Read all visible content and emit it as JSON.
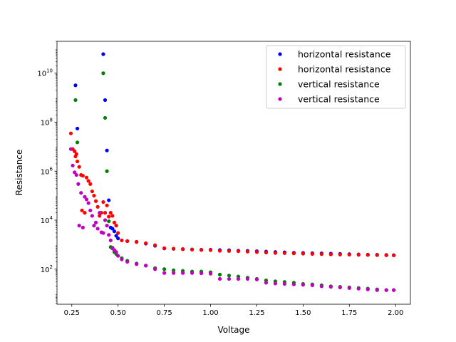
{
  "chart_data": {
    "type": "scatter",
    "xlabel": "Voltage",
    "ylabel": "Resistance",
    "xlim": [
      0.17,
      2.08
    ],
    "ylim": [
      3.7,
      200000000000.0
    ],
    "yscale": "log",
    "grid": false,
    "legend_placement": "top-right",
    "x_ticks": [
      {
        "value": 0.25,
        "label": "0.25"
      },
      {
        "value": 0.5,
        "label": "0.50"
      },
      {
        "value": 0.75,
        "label": "0.75"
      },
      {
        "value": 1.0,
        "label": "1.00"
      },
      {
        "value": 1.25,
        "label": "1.25"
      },
      {
        "value": 1.5,
        "label": "1.50"
      },
      {
        "value": 1.75,
        "label": "1.75"
      },
      {
        "value": 2.0,
        "label": "2.00"
      }
    ],
    "y_ticks": [
      {
        "value": 100,
        "base": "10",
        "exp": "2"
      },
      {
        "value": 10000,
        "base": "10",
        "exp": "4"
      },
      {
        "value": 1000000,
        "base": "10",
        "exp": "6"
      },
      {
        "value": 100000000,
        "base": "10",
        "exp": "8"
      },
      {
        "value": 10000000000,
        "base": "10",
        "exp": "10"
      }
    ],
    "series": [
      {
        "name": "horizontal resistance",
        "color": "#0000ff",
        "points": [
          [
            0.27,
            3200000000.0
          ],
          [
            0.28,
            55000000.0
          ],
          [
            0.42,
            60000000000.0
          ],
          [
            0.43,
            800000000.0
          ],
          [
            0.44,
            7000000.0
          ],
          [
            0.45,
            65000.0
          ],
          [
            0.46,
            5000
          ],
          [
            0.47,
            4500
          ],
          [
            0.48,
            3500
          ],
          [
            0.49,
            2300
          ],
          [
            0.5,
            1800
          ],
          [
            0.55,
            1400
          ],
          [
            0.6,
            1300
          ],
          [
            0.65,
            1100
          ],
          [
            0.7,
            900
          ],
          [
            0.75,
            700
          ],
          [
            0.8,
            680
          ],
          [
            0.85,
            660
          ],
          [
            0.9,
            640
          ],
          [
            0.95,
            620
          ],
          [
            1.0,
            620
          ],
          [
            1.05,
            600
          ],
          [
            1.1,
            590
          ],
          [
            1.15,
            570
          ],
          [
            1.2,
            560
          ],
          [
            1.25,
            540
          ],
          [
            1.3,
            520
          ],
          [
            1.35,
            500
          ],
          [
            1.4,
            490
          ],
          [
            1.45,
            470
          ],
          [
            1.5,
            460
          ],
          [
            1.55,
            450
          ],
          [
            1.6,
            440
          ],
          [
            1.65,
            430
          ],
          [
            1.7,
            420
          ],
          [
            1.75,
            410
          ],
          [
            1.8,
            400
          ],
          [
            1.85,
            390
          ],
          [
            1.9,
            385
          ],
          [
            1.95,
            380
          ],
          [
            1.99,
            375
          ]
        ]
      },
      {
        "name": "horizontal resistance",
        "color": "#ff0000",
        "points": [
          [
            0.245,
            35000000.0
          ],
          [
            0.255,
            8000000.0
          ],
          [
            0.265,
            6500000.0
          ],
          [
            0.27,
            4000000.0
          ],
          [
            0.275,
            5000000.0
          ],
          [
            0.28,
            2500000.0
          ],
          [
            0.29,
            1500000.0
          ],
          [
            0.3,
            700000.0
          ],
          [
            0.305,
            25000.0
          ],
          [
            0.31,
            650000.0
          ],
          [
            0.32,
            20000.0
          ],
          [
            0.33,
            550000.0
          ],
          [
            0.34,
            400000.0
          ],
          [
            0.35,
            300000.0
          ],
          [
            0.36,
            150000.0
          ],
          [
            0.37,
            100000.0
          ],
          [
            0.38,
            60000.0
          ],
          [
            0.39,
            35000.0
          ],
          [
            0.4,
            15000.0
          ],
          [
            0.41,
            20000.0
          ],
          [
            0.42,
            55000.0
          ],
          [
            0.43,
            20000.0
          ],
          [
            0.44,
            40000.0
          ],
          [
            0.45,
            14000.0
          ],
          [
            0.46,
            20000.0
          ],
          [
            0.47,
            15000.0
          ],
          [
            0.48,
            8000
          ],
          [
            0.49,
            6000
          ],
          [
            0.5,
            3000
          ],
          [
            0.52,
            1500
          ],
          [
            0.55,
            1400
          ],
          [
            0.6,
            1300
          ],
          [
            0.65,
            1150
          ],
          [
            0.7,
            950
          ],
          [
            0.75,
            720
          ],
          [
            0.8,
            680
          ],
          [
            0.85,
            650
          ],
          [
            0.9,
            630
          ],
          [
            0.95,
            610
          ],
          [
            1.0,
            600
          ],
          [
            1.05,
            560
          ],
          [
            1.1,
            550
          ],
          [
            1.15,
            540
          ],
          [
            1.2,
            520
          ],
          [
            1.25,
            500
          ],
          [
            1.3,
            480
          ],
          [
            1.35,
            460
          ],
          [
            1.4,
            450
          ],
          [
            1.45,
            440
          ],
          [
            1.5,
            430
          ],
          [
            1.55,
            420
          ],
          [
            1.6,
            410
          ],
          [
            1.65,
            400
          ],
          [
            1.7,
            395
          ],
          [
            1.75,
            390
          ],
          [
            1.8,
            385
          ],
          [
            1.85,
            380
          ],
          [
            1.9,
            375
          ],
          [
            1.95,
            370
          ],
          [
            1.99,
            365
          ]
        ]
      },
      {
        "name": "vertical resistance",
        "color": "#008000",
        "points": [
          [
            0.27,
            800000000.0
          ],
          [
            0.28,
            15000000.0
          ],
          [
            0.42,
            10000000000.0
          ],
          [
            0.43,
            150000000.0
          ],
          [
            0.44,
            1000000.0
          ],
          [
            0.45,
            9000
          ],
          [
            0.46,
            800
          ],
          [
            0.47,
            750
          ],
          [
            0.48,
            500
          ],
          [
            0.49,
            420
          ],
          [
            0.5,
            350
          ],
          [
            0.52,
            280
          ],
          [
            0.55,
            220
          ],
          [
            0.6,
            170
          ],
          [
            0.65,
            140
          ],
          [
            0.7,
            110
          ],
          [
            0.75,
            100
          ],
          [
            0.8,
            90
          ],
          [
            0.85,
            85
          ],
          [
            0.9,
            80
          ],
          [
            0.95,
            80
          ],
          [
            1.0,
            75
          ],
          [
            1.05,
            60
          ],
          [
            1.1,
            55
          ],
          [
            1.15,
            50
          ],
          [
            1.2,
            45
          ],
          [
            1.25,
            40
          ],
          [
            1.3,
            35
          ],
          [
            1.35,
            32
          ],
          [
            1.4,
            30
          ],
          [
            1.45,
            28
          ],
          [
            1.5,
            25
          ],
          [
            1.55,
            24
          ],
          [
            1.6,
            22
          ],
          [
            1.65,
            20
          ],
          [
            1.7,
            19
          ],
          [
            1.75,
            18
          ],
          [
            1.8,
            17
          ],
          [
            1.85,
            16
          ],
          [
            1.9,
            15
          ],
          [
            1.95,
            14
          ],
          [
            1.99,
            14
          ]
        ]
      },
      {
        "name": "vertical resistance",
        "color": "#bf00bf",
        "points": [
          [
            0.245,
            8000000.0
          ],
          [
            0.255,
            1700000.0
          ],
          [
            0.265,
            900000.0
          ],
          [
            0.275,
            700000.0
          ],
          [
            0.285,
            300000.0
          ],
          [
            0.29,
            6000
          ],
          [
            0.3,
            130000.0
          ],
          [
            0.31,
            5000
          ],
          [
            0.32,
            90000.0
          ],
          [
            0.33,
            70000.0
          ],
          [
            0.34,
            50000.0
          ],
          [
            0.35,
            25000.0
          ],
          [
            0.36,
            15000.0
          ],
          [
            0.37,
            6000
          ],
          [
            0.38,
            8000
          ],
          [
            0.39,
            4500
          ],
          [
            0.4,
            20000.0
          ],
          [
            0.41,
            3200
          ],
          [
            0.42,
            3000
          ],
          [
            0.43,
            10000.0
          ],
          [
            0.44,
            6000
          ],
          [
            0.45,
            2500
          ],
          [
            0.46,
            1500
          ],
          [
            0.47,
            700
          ],
          [
            0.48,
            600
          ],
          [
            0.49,
            500
          ],
          [
            0.5,
            350
          ],
          [
            0.52,
            250
          ],
          [
            0.55,
            200
          ],
          [
            0.6,
            160
          ],
          [
            0.65,
            140
          ],
          [
            0.7,
            100
          ],
          [
            0.75,
            70
          ],
          [
            0.8,
            70
          ],
          [
            0.85,
            70
          ],
          [
            0.9,
            70
          ],
          [
            0.95,
            68
          ],
          [
            1.0,
            65
          ],
          [
            1.05,
            40
          ],
          [
            1.1,
            40
          ],
          [
            1.15,
            40
          ],
          [
            1.2,
            40
          ],
          [
            1.25,
            38
          ],
          [
            1.3,
            28
          ],
          [
            1.35,
            26
          ],
          [
            1.4,
            25
          ],
          [
            1.45,
            24
          ],
          [
            1.5,
            23
          ],
          [
            1.55,
            22
          ],
          [
            1.6,
            20
          ],
          [
            1.65,
            19
          ],
          [
            1.7,
            18
          ],
          [
            1.75,
            17
          ],
          [
            1.8,
            16
          ],
          [
            1.85,
            15
          ],
          [
            1.9,
            14
          ],
          [
            1.95,
            14
          ],
          [
            1.99,
            14
          ]
        ]
      }
    ]
  }
}
